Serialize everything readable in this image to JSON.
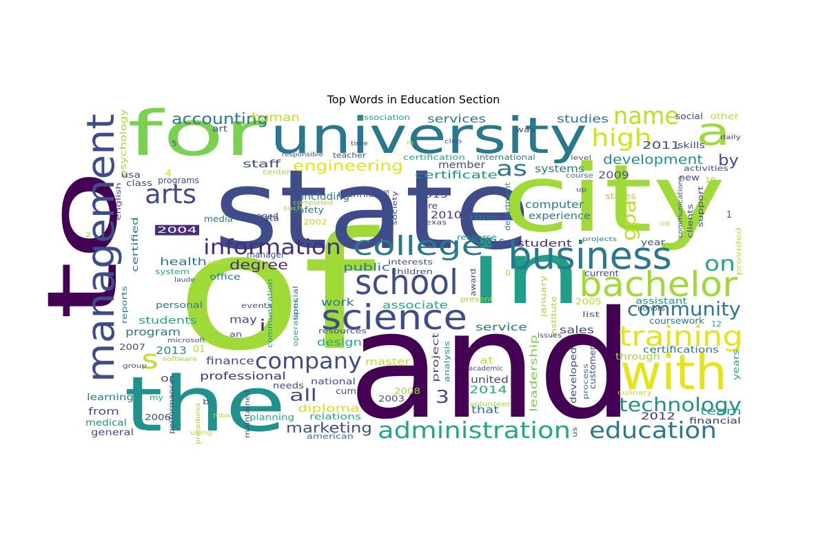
{
  "title": "Top Words in Education Section",
  "palette": "viridis",
  "words": [
    {
      "text": "and",
      "color": "#440154"
    },
    {
      "text": "of",
      "color": "#a0da39"
    },
    {
      "text": "state",
      "color": "#3e4c8a"
    },
    {
      "text": "to",
      "color": "#440154"
    },
    {
      "text": "city",
      "color": "#a0da39"
    },
    {
      "text": "in",
      "color": "#1f9e89"
    },
    {
      "text": "the",
      "color": "#21918c"
    },
    {
      "text": "university",
      "color": "#2a788e"
    },
    {
      "text": "for",
      "color": "#7ad151"
    },
    {
      "text": "management",
      "color": "#3e4c8a"
    },
    {
      "text": "with",
      "color": "#e5e419"
    },
    {
      "text": "business",
      "color": "#2a788e"
    },
    {
      "text": "bachelor",
      "color": "#a0da39"
    },
    {
      "text": "science",
      "color": "#3e4c8a"
    },
    {
      "text": "school",
      "color": "#3e4c8a"
    },
    {
      "text": "college",
      "color": "#2a788e"
    },
    {
      "text": "administration",
      "color": "#22a884"
    },
    {
      "text": "education",
      "color": "#2a788e"
    },
    {
      "text": "training",
      "color": "#e5e419"
    },
    {
      "text": "technology",
      "color": "#21918c"
    },
    {
      "text": "company",
      "color": "#3e4c8a"
    },
    {
      "text": "information",
      "color": "#472d7b"
    },
    {
      "text": "a",
      "color": "#a0da39"
    },
    {
      "text": "community",
      "color": "#2a788e"
    },
    {
      "text": "arts",
      "color": "#3e4c8a"
    },
    {
      "text": "high",
      "color": "#d2e21b"
    },
    {
      "text": "name",
      "color": "#bddf26"
    },
    {
      "text": "as",
      "color": "#2a788e"
    },
    {
      "text": "gpa",
      "color": "#bddf26"
    },
    {
      "text": "s",
      "color": "#bddf26"
    },
    {
      "text": "on",
      "color": "#22a884"
    },
    {
      "text": "accounting",
      "color": "#2a788e"
    },
    {
      "text": "engineering",
      "color": "#e5e419"
    },
    {
      "text": "development",
      "color": "#21918c"
    },
    {
      "text": "degree",
      "color": "#472d7b"
    },
    {
      "text": "all",
      "color": "#3e4c8a"
    },
    {
      "text": "marketing",
      "color": "#3e4c8a"
    },
    {
      "text": "3",
      "color": "#3e4c8a"
    },
    {
      "text": "by",
      "color": "#3e4c8a"
    },
    {
      "text": "i",
      "color": "#472d7b"
    },
    {
      "text": "human",
      "color": "#bddf26"
    },
    {
      "text": "services",
      "color": "#2a788e"
    },
    {
      "text": "studies",
      "color": "#2a788e"
    },
    {
      "text": "certificate",
      "color": "#21918c"
    },
    {
      "text": "systems",
      "color": "#2a788e"
    },
    {
      "text": "2011",
      "color": "#3e4c8a"
    },
    {
      "text": "staff",
      "color": "#3e4c8a"
    },
    {
      "text": "member",
      "color": "#3e4c8a"
    },
    {
      "text": "2009",
      "color": "#3e4c8a"
    },
    {
      "text": "computer",
      "color": "#2a788e"
    },
    {
      "text": "including",
      "color": "#2a788e"
    },
    {
      "text": "2015",
      "color": "#3e4c8a"
    },
    {
      "text": "2010",
      "color": "#472d7b"
    },
    {
      "text": "public",
      "color": "#2a788e"
    },
    {
      "text": "student",
      "color": "#472d7b"
    },
    {
      "text": "experience",
      "color": "#2a788e"
    },
    {
      "text": "health",
      "color": "#2a788e"
    },
    {
      "text": "work",
      "color": "#2a788e"
    },
    {
      "text": "associate",
      "color": "#22a884"
    },
    {
      "text": "students",
      "color": "#22a884"
    },
    {
      "text": "service",
      "color": "#2a788e"
    },
    {
      "text": "may",
      "color": "#3e4c8a"
    },
    {
      "text": "sales",
      "color": "#3e4c8a"
    },
    {
      "text": "design",
      "color": "#22a884"
    },
    {
      "text": "program",
      "color": "#2a788e"
    },
    {
      "text": "2013",
      "color": "#21918c"
    },
    {
      "text": "01",
      "color": "#bddf26"
    },
    {
      "text": "finance",
      "color": "#3e4c8a"
    },
    {
      "text": "professional",
      "color": "#472d7b"
    },
    {
      "text": "master",
      "color": "#bddf26"
    },
    {
      "text": "at",
      "color": "#bddf26"
    },
    {
      "text": "united",
      "color": "#3e4c8a"
    },
    {
      "text": "2014",
      "color": "#22a884"
    },
    {
      "text": "that",
      "color": "#2a788e"
    },
    {
      "text": "team",
      "color": "#22a884"
    },
    {
      "text": "2012",
      "color": "#472d7b"
    },
    {
      "text": "diploma",
      "color": "#d2e21b"
    },
    {
      "text": "certifications",
      "color": "#2a788e"
    },
    {
      "text": "coursework",
      "color": "#2a788e"
    },
    {
      "text": "assistant",
      "color": "#21918c"
    },
    {
      "text": "through",
      "color": "#a0da39"
    },
    {
      "text": "years",
      "color": "#22a884"
    },
    {
      "text": "from",
      "color": "#3e4c8a"
    },
    {
      "text": "medical",
      "color": "#21918c"
    },
    {
      "text": "general",
      "color": "#3e4c8a"
    },
    {
      "text": "learning",
      "color": "#2a788e"
    },
    {
      "text": "or",
      "color": "#3e4c8a"
    },
    {
      "text": "planning",
      "color": "#22a884"
    },
    {
      "text": "relations",
      "color": "#22a884"
    },
    {
      "text": "american",
      "color": "#2a788e"
    },
    {
      "text": "financial",
      "color": "#472d7b"
    },
    {
      "text": "national",
      "color": "#3e4c8a"
    },
    {
      "text": "needs",
      "color": "#3e4c8a"
    },
    {
      "text": "cum",
      "color": "#3e4c8a"
    },
    {
      "text": "2008",
      "color": "#a0da39"
    },
    {
      "text": "2003",
      "color": "#3e4c8a"
    },
    {
      "text": "2006",
      "color": "#3e4c8a"
    },
    {
      "text": "2007",
      "color": "#3e4c8a"
    },
    {
      "text": "2005",
      "color": "#bddf26"
    },
    {
      "text": "2004",
      "color": "#ffffff",
      "bg": "#472d7b"
    },
    {
      "text": "2002",
      "color": "#bddf26"
    },
    {
      "text": "2016",
      "color": "#3e4c8a"
    },
    {
      "text": "psychology",
      "color": "#a0da39"
    },
    {
      "text": "usa",
      "color": "#3e4c8a"
    },
    {
      "text": "class",
      "color": "#3e4c8a"
    },
    {
      "text": "programs",
      "color": "#3e4c8a"
    },
    {
      "text": "art",
      "color": "#3e4c8a"
    },
    {
      "text": "certified",
      "color": "#2a788e"
    },
    {
      "text": "managed",
      "color": "#3e4c8a"
    },
    {
      "text": "data",
      "color": "#3e4c8a"
    },
    {
      "text": "media",
      "color": "#2a788e"
    },
    {
      "text": "manager",
      "color": "#3e4c8a"
    },
    {
      "text": "safety",
      "color": "#2a788e"
    },
    {
      "text": "office",
      "color": "#2a788e"
    },
    {
      "text": "system",
      "color": "#22a884"
    },
    {
      "text": "personal",
      "color": "#2a788e"
    },
    {
      "text": "reports",
      "color": "#2a788e"
    },
    {
      "text": "english",
      "color": "#3e4c8a"
    },
    {
      "text": "interests",
      "color": "#3e4c8a"
    },
    {
      "text": "children",
      "color": "#3e4c8a"
    },
    {
      "text": "resources",
      "color": "#3e4c8a"
    },
    {
      "text": "communication",
      "color": "#21918c"
    },
    {
      "text": "operations",
      "color": "#22a884"
    },
    {
      "text": "special",
      "color": "#2a788e"
    },
    {
      "text": "events",
      "color": "#3e4c8a"
    },
    {
      "text": "an",
      "color": "#3e4c8a"
    },
    {
      "text": "microsoft",
      "color": "#3e4c8a"
    },
    {
      "text": "software",
      "color": "#a0da39"
    },
    {
      "text": "group",
      "color": "#3e4c8a"
    },
    {
      "text": "my",
      "color": "#22a884"
    },
    {
      "text": "b",
      "color": "#3e4c8a"
    },
    {
      "text": "performance",
      "color": "#3e4c8a"
    },
    {
      "text": "maintained",
      "color": "#3e4c8a"
    },
    {
      "text": "using",
      "color": "#bddf26"
    },
    {
      "text": "mba",
      "color": "#bddf26"
    },
    {
      "text": "project",
      "color": "#3e4c8a"
    },
    {
      "text": "analysis",
      "color": "#21918c"
    },
    {
      "text": "academic",
      "color": "#3e4c8a"
    },
    {
      "text": "volunteer",
      "color": "#a0da39"
    },
    {
      "text": "leadership",
      "color": "#7ad151"
    },
    {
      "text": "developed",
      "color": "#3e4c8a"
    },
    {
      "text": "customer",
      "color": "#3e4c8a"
    },
    {
      "text": "process",
      "color": "#2a788e"
    },
    {
      "text": "culinary",
      "color": "#bddf26"
    },
    {
      "text": "us",
      "color": "#3e4c8a"
    },
    {
      "text": "institute",
      "color": "#a0da39"
    },
    {
      "text": "january",
      "color": "#a0da39"
    },
    {
      "text": "award",
      "color": "#3e4c8a"
    },
    {
      "text": "present",
      "color": "#a0da39"
    },
    {
      "text": "issues",
      "color": "#3e4c8a"
    },
    {
      "text": "list",
      "color": "#3e4c8a"
    },
    {
      "text": "honors",
      "color": "#3e4c8a"
    },
    {
      "text": "current",
      "color": "#3e4c8a"
    },
    {
      "text": "year",
      "color": "#3e4c8a"
    },
    {
      "text": "states",
      "color": "#a0da39"
    },
    {
      "text": "their",
      "color": "#2a788e"
    },
    {
      "text": "care",
      "color": "#3e4c8a"
    },
    {
      "text": "resource",
      "color": "#21918c"
    },
    {
      "text": "department",
      "color": "#2a788e"
    },
    {
      "text": "texas",
      "color": "#3e4c8a"
    },
    {
      "text": "projects",
      "color": "#2a788e"
    },
    {
      "text": "communications",
      "color": "#3e4c8a"
    },
    {
      "text": "clients",
      "color": "#3e4c8a"
    },
    {
      "text": "support",
      "color": "#3e4c8a"
    },
    {
      "text": "provided",
      "color": "#bddf26"
    },
    {
      "text": "activities",
      "color": "#3e4c8a"
    },
    {
      "text": "new",
      "color": "#3e4c8a"
    },
    {
      "text": "skills",
      "color": "#3e4c8a"
    },
    {
      "text": "social",
      "color": "#3e4c8a"
    },
    {
      "text": "other",
      "color": "#bddf26"
    },
    {
      "text": "daily",
      "color": "#3e4c8a"
    },
    {
      "text": "level",
      "color": "#3e4c8a"
    },
    {
      "text": "course",
      "color": "#2a788e"
    },
    {
      "text": "up",
      "color": "#3e4c8a"
    },
    {
      "text": "was",
      "color": "#3e4c8a"
    },
    {
      "text": "club",
      "color": "#3e4c8a"
    },
    {
      "text": "time",
      "color": "#3e4c8a"
    },
    {
      "text": "responsible",
      "color": "#3e4c8a"
    },
    {
      "text": "association",
      "color": "#22a884"
    },
    {
      "text": "teacher",
      "color": "#3e4c8a"
    },
    {
      "text": "certification",
      "color": "#22a884"
    },
    {
      "text": "international",
      "color": "#2a788e"
    },
    {
      "text": "technical",
      "color": "#3e4c8a"
    },
    {
      "text": "affiliations",
      "color": "#3e4c8a"
    },
    {
      "text": "society",
      "color": "#3e4c8a"
    },
    {
      "text": "completed",
      "color": "#a0da39"
    },
    {
      "text": "such",
      "color": "#a0da39"
    },
    {
      "text": "center",
      "color": "#a0da39"
    },
    {
      "text": "plans",
      "color": "#bddf26"
    },
    {
      "text": "laude",
      "color": "#3e4c8a"
    },
    {
      "text": "procedures",
      "color": "#a0da39"
    },
    {
      "text": "4",
      "color": "#d2e21b"
    },
    {
      "text": "5",
      "color": "#3e4c8a"
    },
    {
      "text": "1",
      "color": "#3e4c8a"
    },
    {
      "text": "0",
      "color": "#a0da39"
    },
    {
      "text": "2",
      "color": "#a0da39"
    },
    {
      "text": "10",
      "color": "#a0da39"
    },
    {
      "text": "12",
      "color": "#22a884"
    },
    {
      "text": "08",
      "color": "#bddf26"
    },
    {
      "text": "m",
      "color": "#bddf26"
    }
  ]
}
